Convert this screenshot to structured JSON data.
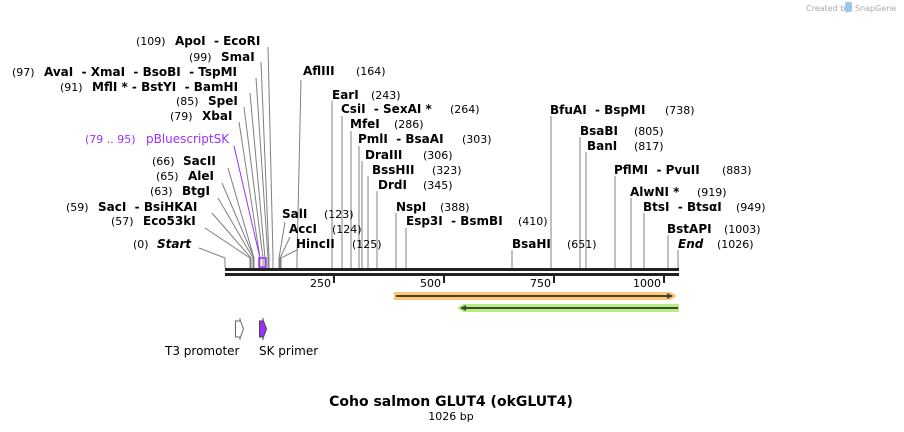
{
  "credit": {
    "created_by": "Created by",
    "brand": "SnapGene"
  },
  "map": {
    "title": "Coho salmon GLUT4 (okGLUT4)",
    "length_label": "1026 bp",
    "length_bp": 1026
  },
  "ticks": [
    "250",
    "500",
    "750",
    "1000"
  ],
  "sites": [
    {
      "pos": "(109)",
      "name": "ApoI  - EcoRI"
    },
    {
      "pos": "(99)",
      "name": "SmaI"
    },
    {
      "pos": "(97)",
      "name": "AvaI  - XmaI  - BsoBI  - TspMI"
    },
    {
      "pos": "(91)",
      "name": "MflI * - BstYI  - BamHI"
    },
    {
      "pos": "(85)",
      "name": "SpeI"
    },
    {
      "pos": "(79)",
      "name": "XbaI"
    },
    {
      "pos": "(79 .. 95)",
      "name": "pBluescriptSK"
    },
    {
      "pos": "(66)",
      "name": "SacII"
    },
    {
      "pos": "(65)",
      "name": "AleI"
    },
    {
      "pos": "(63)",
      "name": "BtgI"
    },
    {
      "pos": "(59)",
      "name": "SacI  - BsiHKAI"
    },
    {
      "pos": "(57)",
      "name": "Eco53kI"
    },
    {
      "pos": "(0)",
      "name": "Start"
    },
    {
      "pos": "(164)",
      "name": "AflIII"
    },
    {
      "pos": "(243)",
      "name": "EarI"
    },
    {
      "pos": "(264)",
      "name": "CsiI  - SexAI *"
    },
    {
      "pos": "(286)",
      "name": "MfeI"
    },
    {
      "pos": "(303)",
      "name": "PmlI  - BsaAI"
    },
    {
      "pos": "(306)",
      "name": "DraIII"
    },
    {
      "pos": "(323)",
      "name": "BssHII"
    },
    {
      "pos": "(345)",
      "name": "DrdI"
    },
    {
      "pos": "(388)",
      "name": "NspI"
    },
    {
      "pos": "(410)",
      "name": "Esp3I  - BsmBI"
    },
    {
      "pos": "(123)",
      "name": "SalI"
    },
    {
      "pos": "(124)",
      "name": "AccI"
    },
    {
      "pos": "(125)",
      "name": "HincII"
    },
    {
      "pos": "(651)",
      "name": "BsaHI"
    },
    {
      "pos": "(738)",
      "name": "BfuAI  - BspMI"
    },
    {
      "pos": "(805)",
      "name": "BsaBI"
    },
    {
      "pos": "(817)",
      "name": "BanI"
    },
    {
      "pos": "(883)",
      "name": "PflMI  - PvuII"
    },
    {
      "pos": "(919)",
      "name": "AlwNI *"
    },
    {
      "pos": "(949)",
      "name": "BtsI  - BtsαI"
    },
    {
      "pos": "(1003)",
      "name": "BstAPI"
    },
    {
      "pos": "(1026)",
      "name": "End"
    }
  ],
  "features": [
    {
      "name": "T3 promoter"
    },
    {
      "name": "SK primer"
    }
  ],
  "colors": {
    "primer_feature": "#9b30ff",
    "orange_feature": "#ffc86e",
    "green_feature": "#b4f07a",
    "site_line": "#808080"
  }
}
